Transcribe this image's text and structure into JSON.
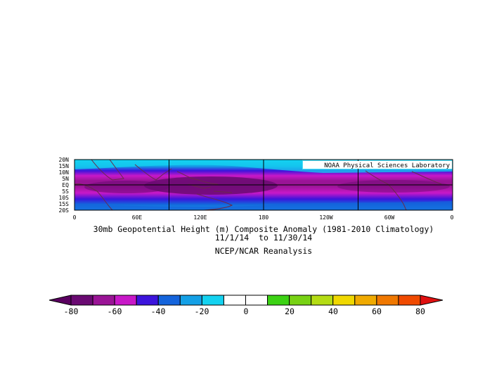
{
  "map": {
    "credit": "NOAA Physical Sciences Laboratory",
    "lat_ticks": [
      "20N",
      "15N",
      "10N",
      "5N",
      "EQ",
      "5S",
      "10S",
      "15S",
      "20S"
    ],
    "lon_ticks": [
      "0",
      "60E",
      "120E",
      "180",
      "120W",
      "60W",
      "0"
    ],
    "extent": {
      "lon": [
        0,
        360
      ],
      "lat": [
        -20,
        20
      ]
    },
    "projection": "cylindrical equidistant"
  },
  "title": {
    "line1": "30mb Geopotential Height (m) Composite Anomaly (1981-2010 Climatology)",
    "line2": "11/1/14  to 11/30/14",
    "line3": "NCEP/NCAR Reanalysis"
  },
  "colorbar": {
    "tick_labels": [
      "-80",
      "-60",
      "-40",
      "-20",
      "0",
      "20",
      "40",
      "60",
      "80"
    ],
    "tick_values": [
      -80,
      -60,
      -40,
      -20,
      0,
      20,
      40,
      60,
      80
    ],
    "levels": [
      -80,
      -70,
      -60,
      -50,
      -40,
      -30,
      -20,
      -10,
      0,
      10,
      20,
      30,
      40,
      50,
      60,
      70,
      80
    ],
    "under_color": "#5a0060",
    "over_color": "#e01010",
    "colors": [
      "#6a0a72",
      "#9a1496",
      "#c818c8",
      "#3c14dc",
      "#1464dc",
      "#14a0e6",
      "#14d2f0",
      "#ffffff",
      "#ffffff",
      "#3cd214",
      "#78d214",
      "#b4dc14",
      "#f0d800",
      "#f0aa00",
      "#f07800",
      "#f04a00"
    ]
  }
}
